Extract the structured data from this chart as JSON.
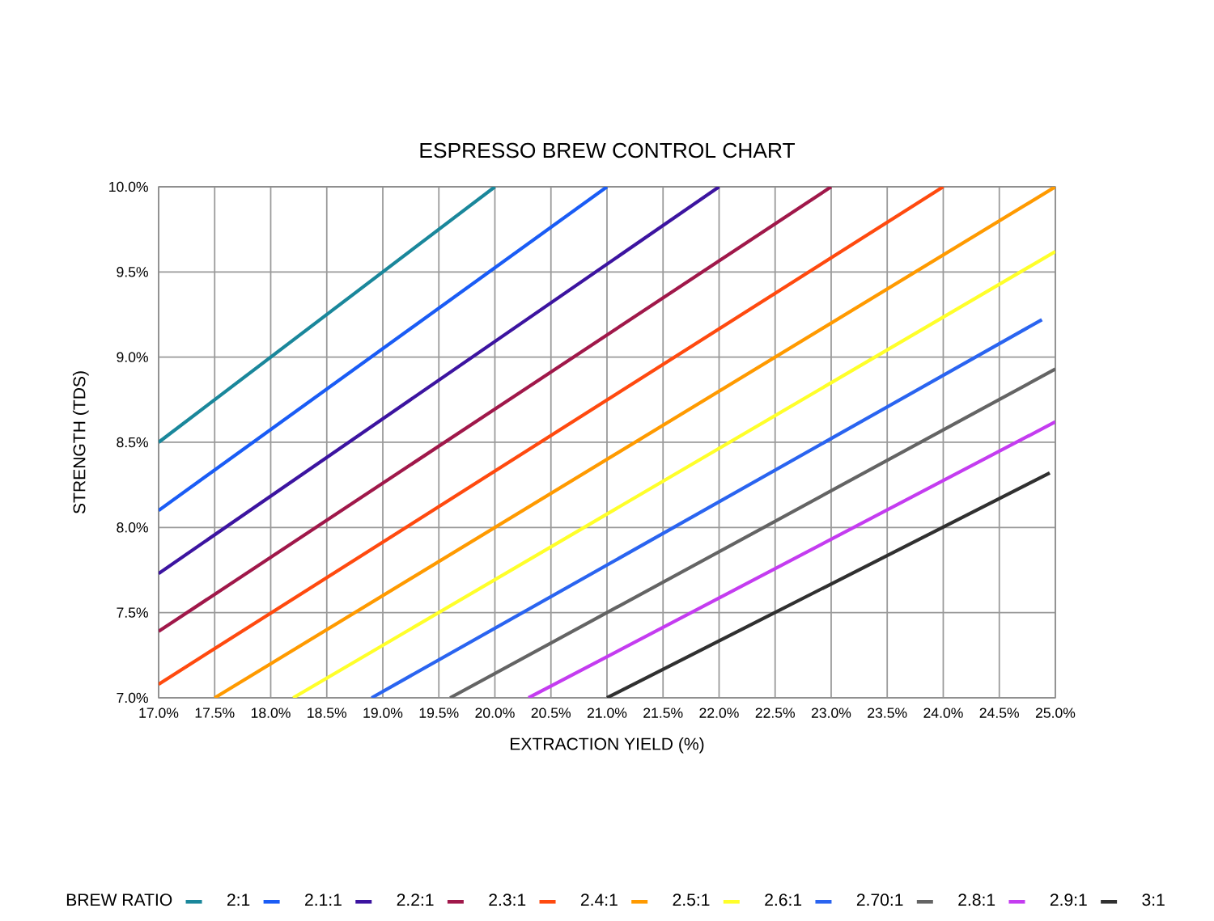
{
  "chart_data": {
    "type": "line",
    "title": "ESPRESSO BREW CONTROL CHART",
    "xlabel": "EXTRACTION YIELD (%)",
    "ylabel": "STRENGTH (TDS)",
    "legend_title": "BREW RATIO",
    "legend": "bottom",
    "grid": true,
    "marker": "none",
    "line_style": "solid",
    "xlim": [
      17.0,
      25.0
    ],
    "ylim": [
      7.0,
      10.0
    ],
    "xticks": [
      {
        "value": 17.0,
        "label": "17.0%"
      },
      {
        "value": 17.5,
        "label": "17.5%"
      },
      {
        "value": 18.0,
        "label": "18.0%"
      },
      {
        "value": 18.5,
        "label": "18.5%"
      },
      {
        "value": 19.0,
        "label": "19.0%"
      },
      {
        "value": 19.5,
        "label": "19.5%"
      },
      {
        "value": 20.0,
        "label": "20.0%"
      },
      {
        "value": 20.5,
        "label": "20.5%"
      },
      {
        "value": 21.0,
        "label": "21.0%"
      },
      {
        "value": 21.5,
        "label": "21.5%"
      },
      {
        "value": 22.0,
        "label": "22.0%"
      },
      {
        "value": 22.5,
        "label": "22.5%"
      },
      {
        "value": 23.0,
        "label": "23.0%"
      },
      {
        "value": 23.5,
        "label": "23.5%"
      },
      {
        "value": 24.0,
        "label": "24.0%"
      },
      {
        "value": 24.5,
        "label": "24.5%"
      },
      {
        "value": 25.0,
        "label": "25.0%"
      }
    ],
    "yticks": [
      {
        "value": 7.0,
        "label": "7.0%"
      },
      {
        "value": 7.5,
        "label": "7.5%"
      },
      {
        "value": 8.0,
        "label": "8.0%"
      },
      {
        "value": 8.5,
        "label": "8.5%"
      },
      {
        "value": 9.0,
        "label": "9.0%"
      },
      {
        "value": 9.5,
        "label": "9.5%"
      },
      {
        "value": 10.0,
        "label": "10.0%"
      }
    ],
    "series": [
      {
        "name": "2:1",
        "color": "#1a879b",
        "x": [
          17.0,
          20.0
        ],
        "values": [
          8.5,
          10.0
        ]
      },
      {
        "name": "2.1:1",
        "color": "#1a5cf5",
        "x": [
          17.0,
          21.0
        ],
        "values": [
          8.1,
          10.0
        ]
      },
      {
        "name": "2.2:1",
        "color": "#3c14a0",
        "x": [
          17.0,
          22.0
        ],
        "values": [
          7.73,
          10.0
        ]
      },
      {
        "name": "2.3:1",
        "color": "#a0184a",
        "x": [
          17.0,
          23.0
        ],
        "values": [
          7.39,
          10.0
        ]
      },
      {
        "name": "2.4:1",
        "color": "#ff4a0f",
        "x": [
          17.0,
          24.0
        ],
        "values": [
          7.08,
          10.0
        ]
      },
      {
        "name": "2.5:1",
        "color": "#ff9a00",
        "x": [
          17.5,
          25.0
        ],
        "values": [
          7.0,
          10.0
        ]
      },
      {
        "name": "2.6:1",
        "color": "#ffff2a",
        "x": [
          18.2,
          25.0
        ],
        "values": [
          7.0,
          9.62
        ]
      },
      {
        "name": "2.70:1",
        "color": "#2a64f0",
        "x": [
          18.9,
          24.88
        ],
        "values": [
          7.0,
          9.22
        ]
      },
      {
        "name": "2.8:1",
        "color": "#646464",
        "x": [
          19.6,
          25.0
        ],
        "values": [
          7.0,
          8.93
        ]
      },
      {
        "name": "2.9:1",
        "color": "#c43cf0",
        "x": [
          20.3,
          25.0
        ],
        "values": [
          7.0,
          8.62
        ]
      },
      {
        "name": "3:1",
        "color": "#303030",
        "x": [
          21.0,
          24.95
        ],
        "values": [
          7.0,
          8.32
        ]
      }
    ]
  }
}
